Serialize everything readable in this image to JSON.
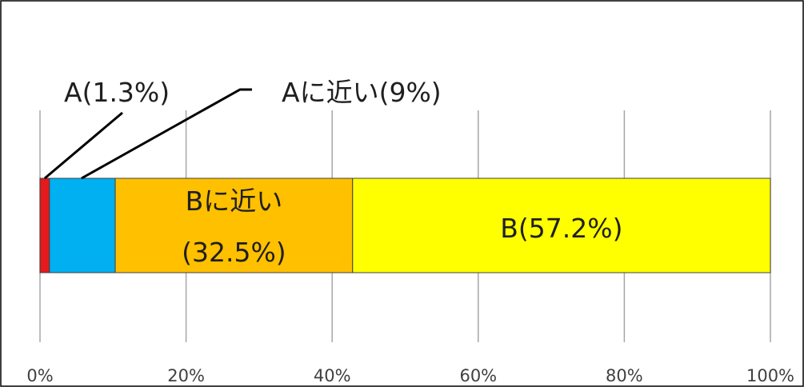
{
  "chart_data": {
    "type": "bar",
    "orientation": "horizontal",
    "stacked": true,
    "grid": true,
    "xlim": [
      0,
      100
    ],
    "tick_labels": [
      "0%",
      "20%",
      "40%",
      "60%",
      "80%",
      "100%"
    ],
    "tick_values": [
      0,
      20,
      40,
      60,
      80,
      100
    ],
    "series": [
      {
        "value": 1.3,
        "color": "#e41a1c",
        "label": "A(1.3%)",
        "label_style": "callout"
      },
      {
        "value": 9.0,
        "color": "#00b0f0",
        "label": "Aに近い(9%)",
        "label_style": "callout"
      },
      {
        "value": 32.5,
        "color": "#ffc000",
        "label_lines": [
          "Bに近い",
          "(32.5%)"
        ],
        "label_style": "inside"
      },
      {
        "value": 57.2,
        "color": "#ffff00",
        "label": "B(57.2%)",
        "label_style": "inside"
      }
    ]
  }
}
